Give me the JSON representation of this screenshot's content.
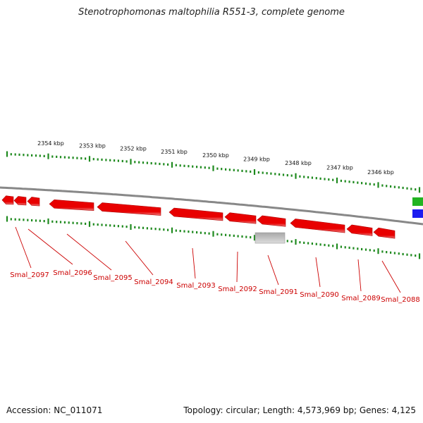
{
  "title": "Stenotrophomonas maltophilia R551-3, complete genome",
  "footer": {
    "accession": "Accession: NC_011071",
    "summary": "Topology: circular; Length: 4,573,969 bp; Genes: 4,125"
  },
  "colors": {
    "gene_forward": "#e80000",
    "gene_label": "#cc0000",
    "backbone": "#888888",
    "tick": "#1f8a1f",
    "other_feature": "#b8b8b8",
    "edge_green": "#22b422",
    "edge_blue": "#1c1cf0"
  },
  "axis": {
    "unit": "kbp",
    "scale_ticks": [
      {
        "position": 2354,
        "label": "2354 kbp"
      },
      {
        "position": 2353,
        "label": "2353 kbp"
      },
      {
        "position": 2352,
        "label": "2352 kbp"
      },
      {
        "position": 2351,
        "label": "2351 kbp"
      },
      {
        "position": 2350,
        "label": "2350 kbp"
      },
      {
        "position": 2349,
        "label": "2349 kbp"
      },
      {
        "position": 2348,
        "label": "2348 kbp"
      },
      {
        "position": 2347,
        "label": "2347 kbp"
      },
      {
        "position": 2346,
        "label": "2346 kbp"
      }
    ]
  },
  "genes": [
    {
      "label": "Smal_2097"
    },
    {
      "label": "Smal_2096"
    },
    {
      "label": "Smal_2095"
    },
    {
      "label": "Smal_2094"
    },
    {
      "label": "Smal_2093"
    },
    {
      "label": "Smal_2092"
    },
    {
      "label": "Smal_2091"
    },
    {
      "label": "Smal_2090"
    },
    {
      "label": "Smal_2089"
    },
    {
      "label": "Smal_2088"
    }
  ]
}
